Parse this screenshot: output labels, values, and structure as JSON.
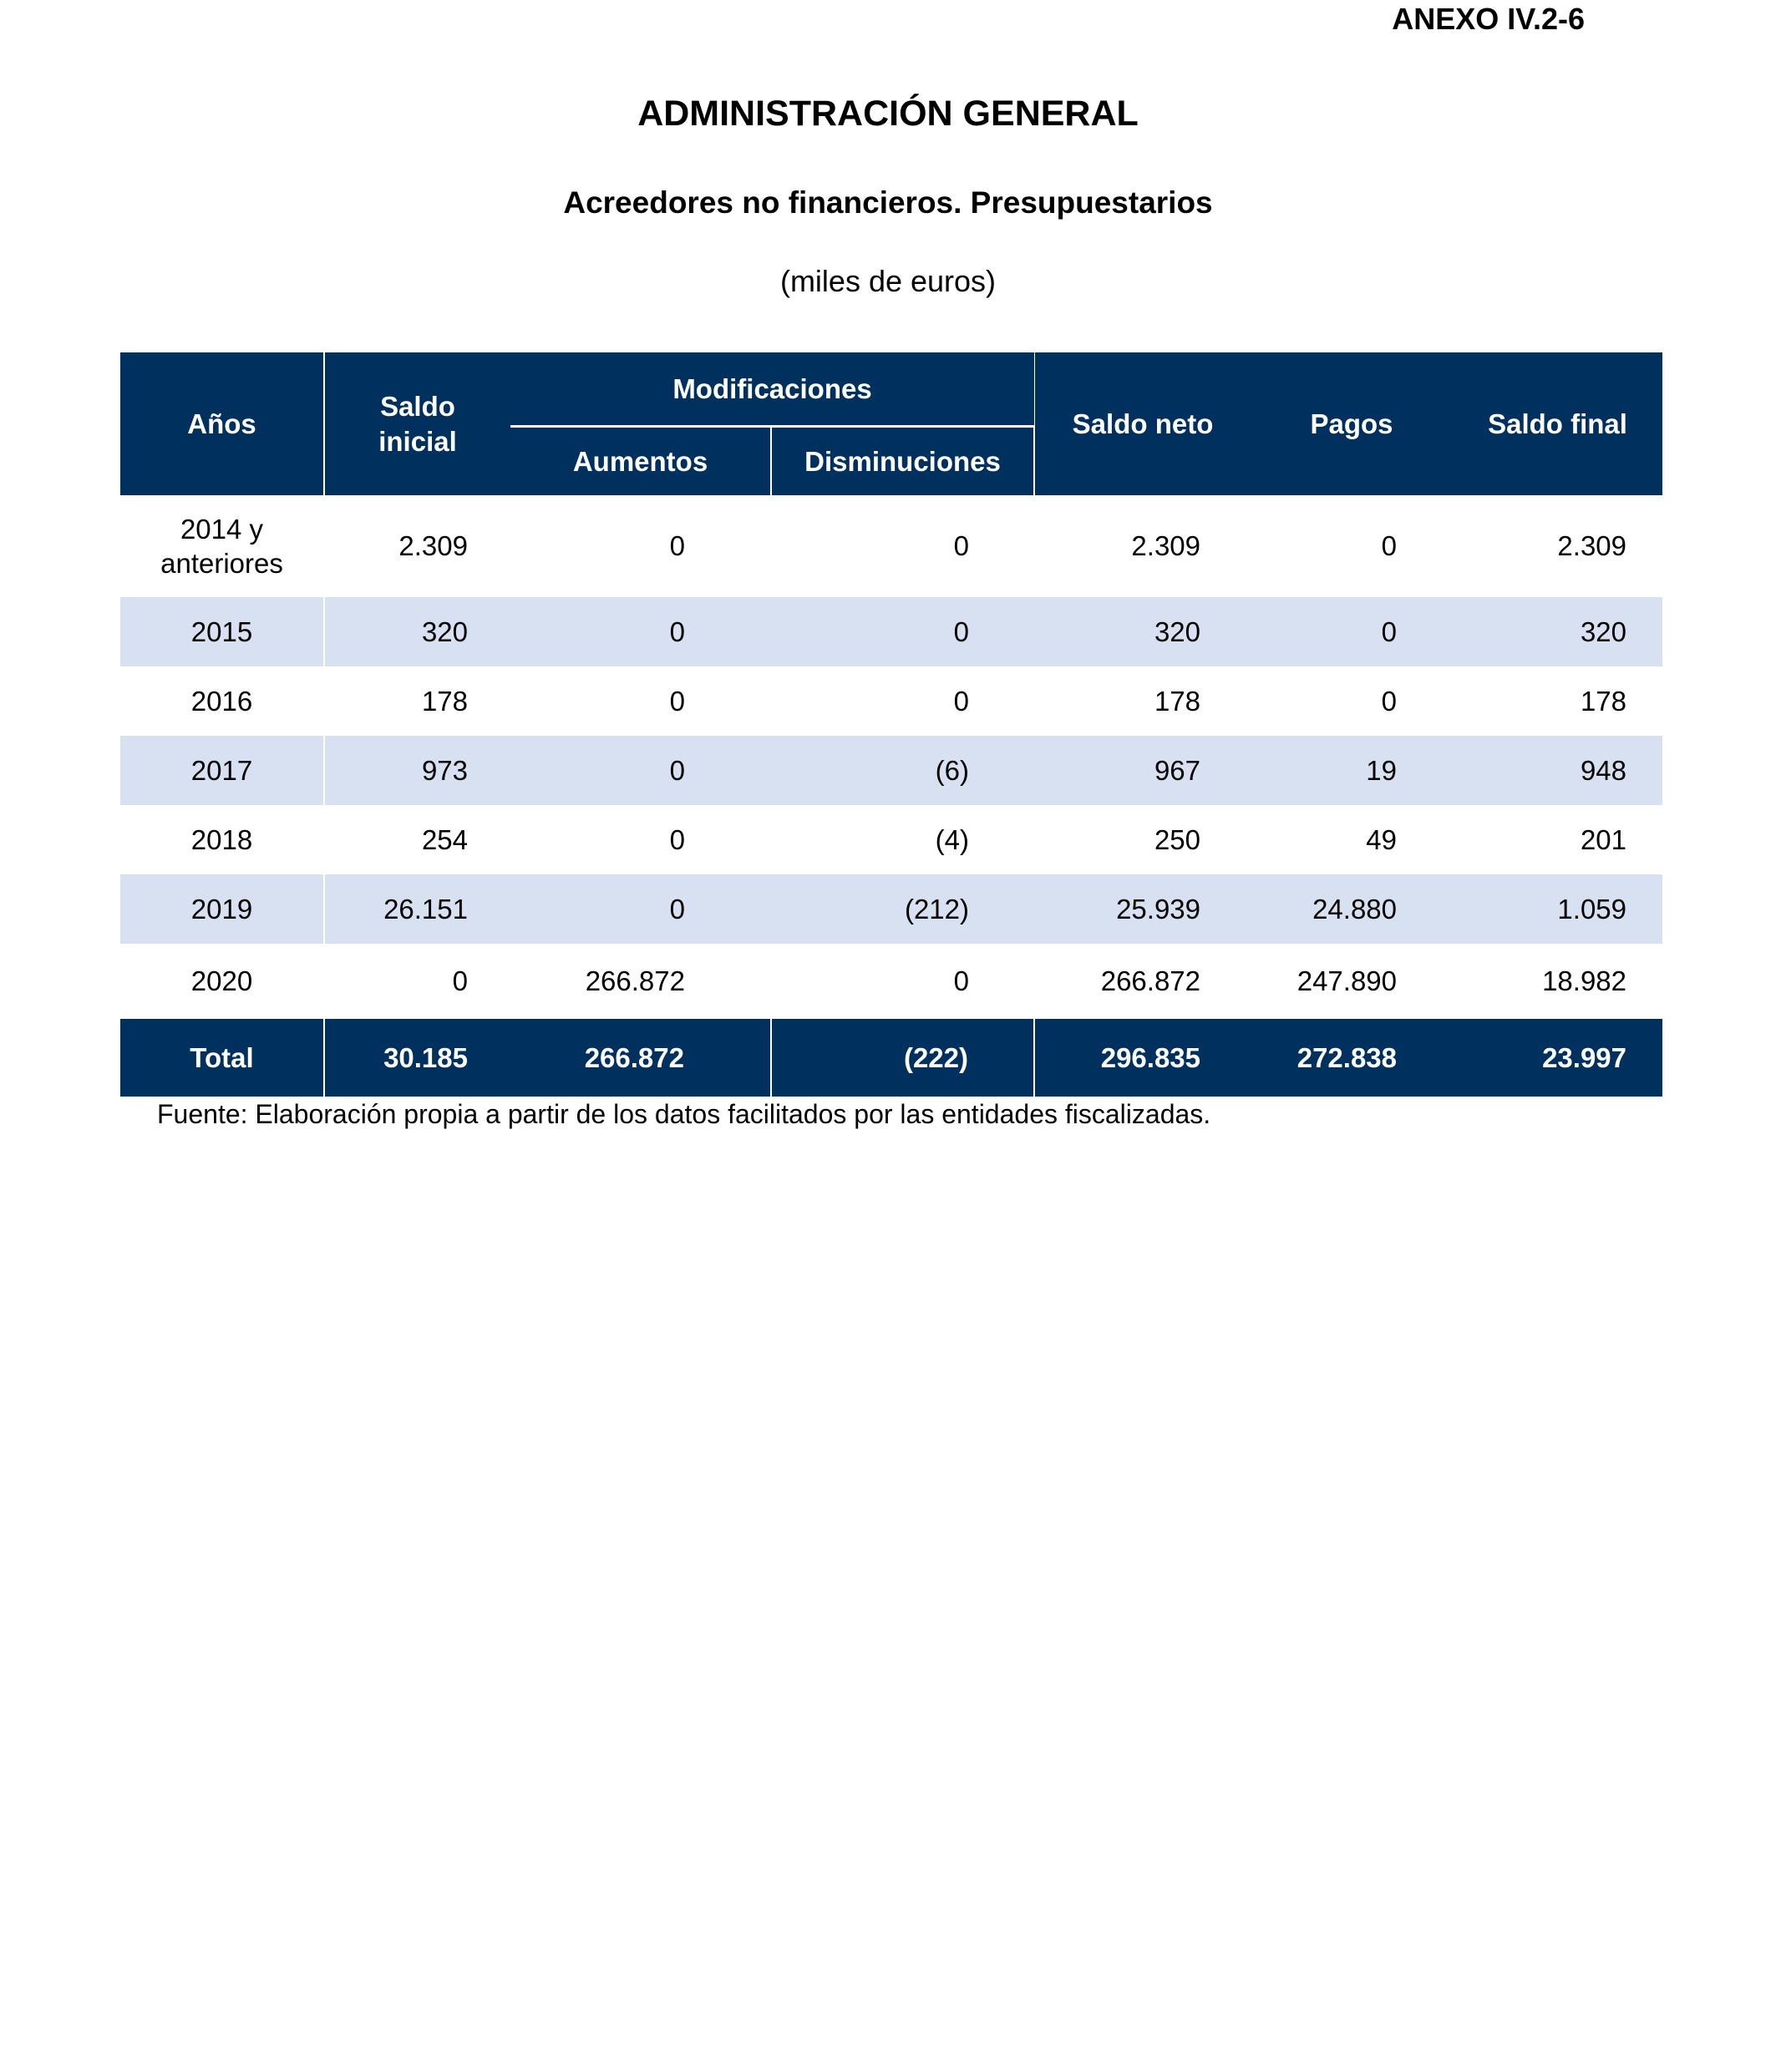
{
  "page": {
    "annex": "ANEXO IV.2-6",
    "title": "ADMINISTRACIÓN GENERAL",
    "subtitle": "Acreedores no financieros. Presupuestarios",
    "unit_note": "(miles de euros)",
    "source_note": "Fuente: Elaboración propia a partir de los datos facilitados por las entidades fiscalizadas."
  },
  "colors": {
    "header_bg": "#00305e",
    "alt_row_bg": "#d8e1f1",
    "header_text": "#ffffff",
    "body_text": "#000000"
  },
  "table": {
    "headers": {
      "years": "Años",
      "saldo_inicial": "Saldo\ninicial",
      "modificaciones": "Modificaciones",
      "aumentos": "Aumentos",
      "disminuciones": "Disminuciones",
      "saldo_neto": "Saldo neto",
      "pagos": "Pagos",
      "saldo_final": "Saldo final"
    },
    "rows": [
      {
        "year": "2014 y\nanteriores",
        "saldo_inicial": "2.309",
        "aumentos": "0",
        "disminuciones": "0",
        "saldo_neto": "2.309",
        "pagos": "0",
        "saldo_final": "2.309"
      },
      {
        "year": "2015",
        "saldo_inicial": "320",
        "aumentos": "0",
        "disminuciones": "0",
        "saldo_neto": "320",
        "pagos": "0",
        "saldo_final": "320"
      },
      {
        "year": "2016",
        "saldo_inicial": "178",
        "aumentos": "0",
        "disminuciones": "0",
        "saldo_neto": "178",
        "pagos": "0",
        "saldo_final": "178"
      },
      {
        "year": "2017",
        "saldo_inicial": "973",
        "aumentos": "0",
        "disminuciones": "(6)",
        "saldo_neto": "967",
        "pagos": "19",
        "saldo_final": "948"
      },
      {
        "year": "2018",
        "saldo_inicial": "254",
        "aumentos": "0",
        "disminuciones": "(4)",
        "saldo_neto": "250",
        "pagos": "49",
        "saldo_final": "201"
      },
      {
        "year": "2019",
        "saldo_inicial": "26.151",
        "aumentos": "0",
        "disminuciones": "(212)",
        "saldo_neto": "25.939",
        "pagos": "24.880",
        "saldo_final": "1.059"
      },
      {
        "year": "2020",
        "saldo_inicial": "0",
        "aumentos": "266.872",
        "disminuciones": "0",
        "saldo_neto": "266.872",
        "pagos": "247.890",
        "saldo_final": "18.982"
      }
    ],
    "total_row": {
      "label": "Total",
      "saldo_inicial": "30.185",
      "aumentos": "266.872",
      "disminuciones": "(222)",
      "saldo_neto": "296.835",
      "pagos": "272.838",
      "saldo_final": "23.997"
    }
  }
}
